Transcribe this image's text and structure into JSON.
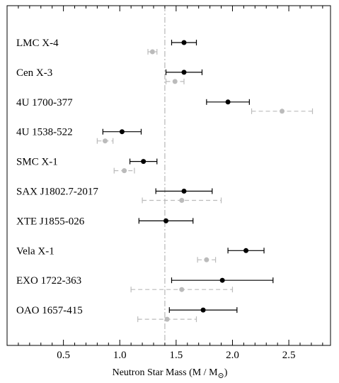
{
  "chart_data": {
    "type": "scatter",
    "xlabel": "Neutron Star Mass (M / M",
    "xlabel_sub": "⊙",
    "xlabel_close": ")",
    "xlim": [
      0.0,
      2.87
    ],
    "xticks": [
      0.5,
      1.0,
      1.5,
      2.0,
      2.5
    ],
    "xtick_labels": [
      "0.5",
      "1.0",
      "1.5",
      "2.0",
      "2.5"
    ],
    "reference_line_x": 1.4,
    "grid": false,
    "colors": {
      "primary": "#000000",
      "secondary": "#bbbbbb",
      "reference": "#aaaaaa"
    },
    "categories": [
      "LMC X-4",
      "Cen X-3",
      "4U 1700-377",
      "4U 1538-522",
      "SMC X-1",
      "SAX J1802.7-2017",
      "XTE J1855-026",
      "Vela X-1",
      "EXO 1722-363",
      "OAO 1657-415"
    ],
    "series": [
      {
        "style": "solid-black",
        "points": [
          {
            "value": 1.57,
            "lo": 1.46,
            "hi": 1.68
          },
          {
            "value": 1.57,
            "lo": 1.41,
            "hi": 1.73
          },
          {
            "value": 1.96,
            "lo": 1.77,
            "hi": 2.15
          },
          {
            "value": 1.02,
            "lo": 0.85,
            "hi": 1.19
          },
          {
            "value": 1.21,
            "lo": 1.09,
            "hi": 1.33
          },
          {
            "value": 1.57,
            "lo": 1.32,
            "hi": 1.82
          },
          {
            "value": 1.41,
            "lo": 1.17,
            "hi": 1.65
          },
          {
            "value": 2.12,
            "lo": 1.96,
            "hi": 2.28
          },
          {
            "value": 1.91,
            "lo": 1.46,
            "hi": 2.36
          },
          {
            "value": 1.74,
            "lo": 1.44,
            "hi": 2.04
          }
        ]
      },
      {
        "style": "dashed-gray",
        "points": [
          {
            "value": 1.29,
            "lo": 1.25,
            "hi": 1.33
          },
          {
            "value": 1.49,
            "lo": 1.41,
            "hi": 1.57
          },
          {
            "value": 2.44,
            "lo": 2.17,
            "hi": 2.71
          },
          {
            "value": 0.87,
            "lo": 0.8,
            "hi": 0.94
          },
          {
            "value": 1.04,
            "lo": 0.95,
            "hi": 1.13
          },
          {
            "value": 1.55,
            "lo": 1.2,
            "hi": 1.9
          },
          null,
          {
            "value": 1.77,
            "lo": 1.69,
            "hi": 1.85
          },
          {
            "value": 1.55,
            "lo": 1.1,
            "hi": 2.0
          },
          {
            "value": 1.42,
            "lo": 1.16,
            "hi": 1.68
          }
        ]
      }
    ]
  }
}
